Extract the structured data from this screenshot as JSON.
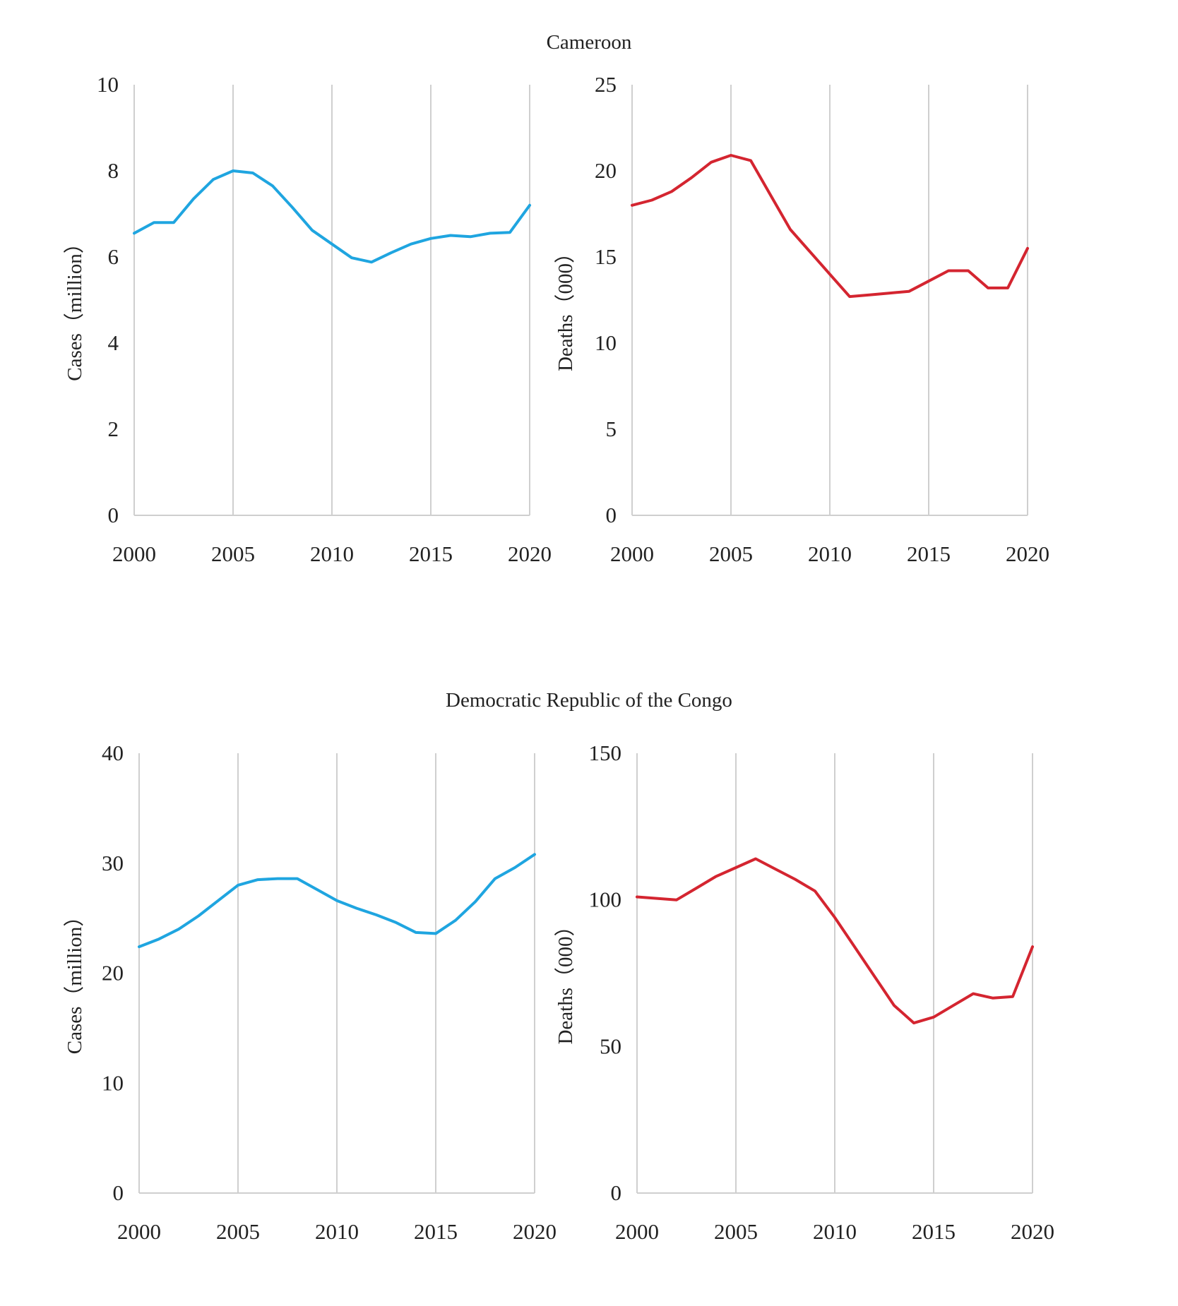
{
  "groups": {
    "top": {
      "title": "Cameroon"
    },
    "bottom": {
      "title": "Democratic Republic of the Congo"
    }
  },
  "colors": {
    "cases": "#1fa5e0",
    "deaths": "#d42530",
    "grid": "#cfcfcf"
  },
  "chart_data": [
    {
      "type": "line",
      "group": "Cameroon",
      "title": "",
      "xlabel": "",
      "ylabel": "Cases（million）",
      "xlim": [
        2000,
        2020
      ],
      "ylim": [
        0,
        10
      ],
      "xticks": [
        "2000",
        "2005",
        "2010",
        "2015",
        "2020"
      ],
      "yticks": [
        "0",
        "2",
        "4",
        "6",
        "8",
        "10"
      ],
      "color": "#1fa5e0",
      "x": [
        2000,
        2001,
        2002,
        2003,
        2004,
        2005,
        2006,
        2007,
        2008,
        2009,
        2010,
        2011,
        2012,
        2013,
        2014,
        2015,
        2016,
        2017,
        2018,
        2019,
        2020
      ],
      "values": [
        6.55,
        6.8,
        6.8,
        7.35,
        7.8,
        8.0,
        7.95,
        7.65,
        7.15,
        6.62,
        6.3,
        5.98,
        5.88,
        6.1,
        6.3,
        6.43,
        6.5,
        6.47,
        6.55,
        6.57,
        7.2
      ]
    },
    {
      "type": "line",
      "group": "Cameroon",
      "title": "",
      "xlabel": "",
      "ylabel": "Deaths（000）",
      "xlim": [
        2000,
        2020
      ],
      "ylim": [
        0,
        25
      ],
      "xticks": [
        "2000",
        "2005",
        "2010",
        "2015",
        "2020"
      ],
      "yticks": [
        "0",
        "5",
        "10",
        "15",
        "20",
        "25"
      ],
      "color": "#d42530",
      "x": [
        2000,
        2001,
        2002,
        2003,
        2004,
        2005,
        2006,
        2007,
        2008,
        2009,
        2010,
        2011,
        2012,
        2013,
        2014,
        2015,
        2016,
        2017,
        2018,
        2019,
        2020
      ],
      "values": [
        18.0,
        18.3,
        18.8,
        19.6,
        20.5,
        20.9,
        20.6,
        18.6,
        16.6,
        15.3,
        14.0,
        12.7,
        12.8,
        12.9,
        13.0,
        13.6,
        14.2,
        14.2,
        13.2,
        13.2,
        15.5
      ]
    },
    {
      "type": "line",
      "group": "Democratic Republic of the Congo",
      "title": "",
      "xlabel": "",
      "ylabel": "Cases（million）",
      "xlim": [
        2000,
        2020
      ],
      "ylim": [
        0,
        40
      ],
      "xticks": [
        "2000",
        "2005",
        "2010",
        "2015",
        "2020"
      ],
      "yticks": [
        "0",
        "10",
        "20",
        "30",
        "40"
      ],
      "color": "#1fa5e0",
      "x": [
        2000,
        2001,
        2002,
        2003,
        2004,
        2005,
        2006,
        2007,
        2008,
        2009,
        2010,
        2011,
        2012,
        2013,
        2014,
        2015,
        2016,
        2017,
        2018,
        2019,
        2020
      ],
      "values": [
        22.4,
        23.1,
        24.0,
        25.2,
        26.6,
        28.0,
        28.5,
        28.6,
        28.6,
        27.6,
        26.6,
        25.9,
        25.3,
        24.6,
        23.7,
        23.6,
        24.8,
        26.5,
        28.6,
        29.6,
        30.8
      ]
    },
    {
      "type": "line",
      "group": "Democratic Republic of the Congo",
      "title": "",
      "xlabel": "",
      "ylabel": "Deaths（000）",
      "xlim": [
        2000,
        2020
      ],
      "ylim": [
        0,
        150
      ],
      "xticks": [
        "2000",
        "2005",
        "2010",
        "2015",
        "2020"
      ],
      "yticks": [
        "0",
        "50",
        "100",
        "150"
      ],
      "color": "#d42530",
      "x": [
        2000,
        2001,
        2002,
        2003,
        2004,
        2005,
        2006,
        2007,
        2008,
        2009,
        2010,
        2011,
        2012,
        2013,
        2014,
        2015,
        2016,
        2017,
        2018,
        2019,
        2020
      ],
      "values": [
        101,
        100.5,
        100,
        104,
        108,
        111,
        114,
        110.5,
        107,
        103,
        94,
        84,
        74,
        64,
        58,
        60,
        64,
        68,
        66.5,
        67,
        84
      ]
    }
  ]
}
